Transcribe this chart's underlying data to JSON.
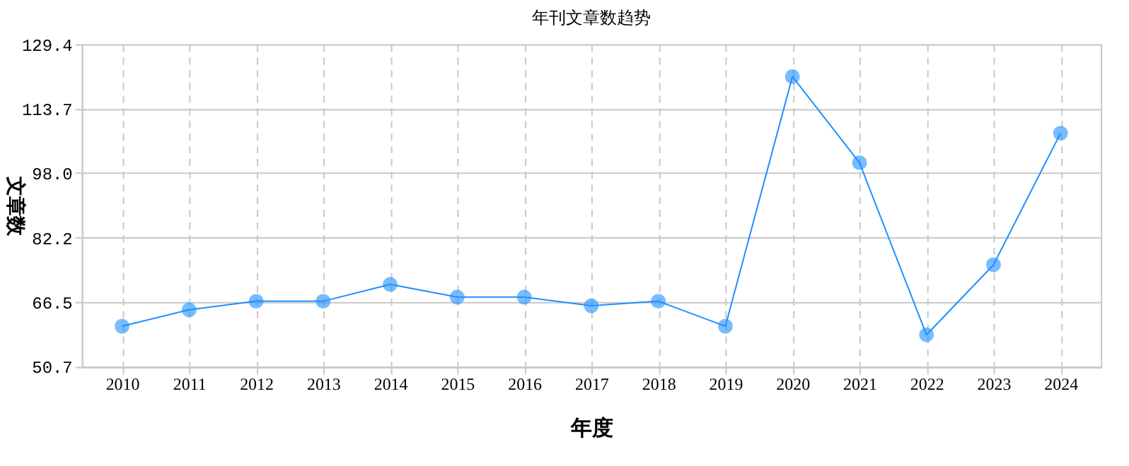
{
  "chart_data": {
    "type": "line",
    "title": "年刊文章数趋势",
    "xlabel": "年度",
    "ylabel": "文章数",
    "categories": [
      "2010",
      "2011",
      "2012",
      "2013",
      "2014",
      "2015",
      "2016",
      "2017",
      "2018",
      "2019",
      "2020",
      "2021",
      "2022",
      "2023",
      "2024"
    ],
    "series": [
      {
        "color": "#1e8fff",
        "values": [
          60.6,
          64.6,
          66.7,
          66.7,
          70.8,
          67.7,
          67.7,
          65.6,
          66.7,
          60.6,
          121.5,
          100.5,
          58.5,
          75.6,
          107.7
        ]
      }
    ],
    "ylim": [
      50.7,
      129.4
    ],
    "yticks": [
      {
        "value": 50.7,
        "label": "50.7"
      },
      {
        "value": 66.5,
        "label": "66.5"
      },
      {
        "value": 82.2,
        "label": "82.2"
      },
      {
        "value": 98.0,
        "label": "98.0"
      },
      {
        "value": 113.7,
        "label": "113.7"
      },
      {
        "value": 129.4,
        "label": "129.4"
      }
    ],
    "grid": true,
    "marker": "circle",
    "line_style": "solid"
  }
}
